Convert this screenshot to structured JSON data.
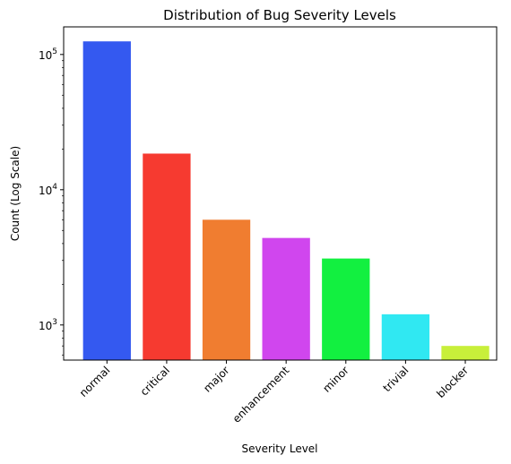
{
  "chart_data": {
    "type": "bar",
    "title": "Distribution of Bug Severity Levels",
    "xlabel": "Severity Level",
    "ylabel": "Count (Log Scale)",
    "yscale": "log",
    "ylim": [
      550,
      160000
    ],
    "ytick_labels": [
      {
        "base": "10",
        "exp": "3",
        "value": 1000
      },
      {
        "base": "10",
        "exp": "4",
        "value": 10000
      },
      {
        "base": "10",
        "exp": "5",
        "value": 100000
      }
    ],
    "categories": [
      "normal",
      "critical",
      "major",
      "enhancement",
      "minor",
      "trivial",
      "blocker"
    ],
    "values": [
      125000,
      18500,
      6000,
      4400,
      3100,
      1200,
      700
    ],
    "colors": [
      "#3459f0",
      "#f63a30",
      "#f07d30",
      "#d046ee",
      "#12f040",
      "#30e8f2",
      "#c8ef3a"
    ],
    "grid": false,
    "legend": "none"
  }
}
